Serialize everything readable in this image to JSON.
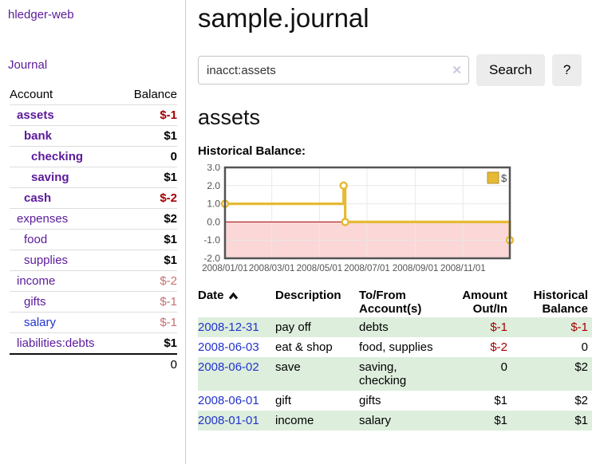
{
  "colors": {
    "purple": "#5b1a9b",
    "blue": "#2233cc",
    "neg-strong": "#a40000",
    "neg-soft": "#c47171",
    "row-green": "#ddeedd"
  },
  "sidebar": {
    "app_title": "hledger-web",
    "journal_link": "Journal",
    "table": {
      "header": {
        "account": "Account",
        "balance": "Balance"
      },
      "accounts": [
        {
          "name": "assets",
          "depth": 1,
          "bold": true,
          "link_color": "purple",
          "balance": "$-1",
          "balance_style": "neg-strong"
        },
        {
          "name": "bank",
          "depth": 2,
          "bold": true,
          "link_color": "purple",
          "balance": "$1",
          "balance_style": "pos"
        },
        {
          "name": "checking",
          "depth": 3,
          "bold": true,
          "link_color": "purple",
          "balance": "0",
          "balance_style": "pos"
        },
        {
          "name": "saving",
          "depth": 3,
          "bold": true,
          "link_color": "purple",
          "balance": "$1",
          "balance_style": "pos"
        },
        {
          "name": "cash",
          "depth": 2,
          "bold": true,
          "link_color": "purple",
          "balance": "$-2",
          "balance_style": "neg-strong"
        },
        {
          "name": "expenses",
          "depth": 1,
          "bold": false,
          "link_color": "purple",
          "balance": "$2",
          "balance_style": "pos"
        },
        {
          "name": "food",
          "depth": 2,
          "bold": false,
          "link_color": "purple",
          "balance": "$1",
          "balance_style": "pos"
        },
        {
          "name": "supplies",
          "depth": 2,
          "bold": false,
          "link_color": "purple",
          "balance": "$1",
          "balance_style": "pos"
        },
        {
          "name": "income",
          "depth": 1,
          "bold": false,
          "link_color": "purple",
          "balance": "$-2",
          "balance_style": "neg-soft"
        },
        {
          "name": "gifts",
          "depth": 2,
          "bold": false,
          "link_color": "purple",
          "balance": "$-1",
          "balance_style": "neg-soft"
        },
        {
          "name": "salary",
          "depth": 2,
          "bold": false,
          "link_color": "blue",
          "balance": "$-1",
          "balance_style": "neg-soft"
        },
        {
          "name": "liabilities:debts",
          "depth": 1,
          "bold": false,
          "link_color": "purple",
          "balance": "$1",
          "balance_style": "pos"
        }
      ],
      "total": "0"
    }
  },
  "main": {
    "title": "sample.journal",
    "search": {
      "value": "inacct:assets",
      "clear_icon": "✕",
      "button_label": "Search",
      "help_label": "?"
    },
    "account_heading": "assets",
    "chart_label": "Historical Balance:",
    "table": {
      "headers": {
        "date": "Date",
        "description": "Description",
        "accounts": "To/From Account(s)",
        "amount": "Amount Out/In",
        "balance": "Historical Balance"
      },
      "rows": [
        {
          "date": "2008-12-31",
          "description": "pay off",
          "accounts": "debts",
          "amount": "$-1",
          "amount_neg": true,
          "balance": "$-1",
          "balance_neg": true,
          "shaded": true
        },
        {
          "date": "2008-06-03",
          "description": "eat & shop",
          "accounts": "food, supplies",
          "amount": "$-2",
          "amount_neg": true,
          "balance": "0",
          "balance_neg": false,
          "shaded": false
        },
        {
          "date": "2008-06-02",
          "description": "save",
          "accounts": "saving, checking",
          "amount": "0",
          "amount_neg": false,
          "balance": "$2",
          "balance_neg": false,
          "shaded": true
        },
        {
          "date": "2008-06-01",
          "description": "gift",
          "accounts": "gifts",
          "amount": "$1",
          "amount_neg": false,
          "balance": "$2",
          "balance_neg": false,
          "shaded": false
        },
        {
          "date": "2008-01-01",
          "description": "income",
          "accounts": "salary",
          "amount": "$1",
          "amount_neg": false,
          "balance": "$1",
          "balance_neg": false,
          "shaded": true
        }
      ]
    }
  },
  "chart_data": {
    "type": "line",
    "title": "Historical Balance of assets",
    "step": true,
    "series": [
      {
        "name": "$",
        "color": "#e6ba35",
        "points": [
          [
            "2008-01-01",
            1
          ],
          [
            "2008-06-01",
            2
          ],
          [
            "2008-06-03",
            0
          ],
          [
            "2008-12-31",
            -1
          ]
        ]
      }
    ],
    "x_range": [
      "2008-01-01",
      "2008-12-31"
    ],
    "ylim": [
      -2,
      3
    ],
    "yticks": [
      3.0,
      2.0,
      1.0,
      0.0,
      -1.0,
      -2.0
    ],
    "xticks": [
      "2008/01/01",
      "2008/03/01",
      "2008/05/01",
      "2008/07/01",
      "2008/09/01",
      "2008/11/01"
    ],
    "grid": true,
    "grid_color": "#e8e8e8",
    "border_color": "#545454",
    "negative_region_fill": "#fbd7d7",
    "zero_line_color": "#a40000",
    "legend": {
      "label": "$",
      "position": "top-right",
      "box_border": "#b8922a"
    }
  }
}
